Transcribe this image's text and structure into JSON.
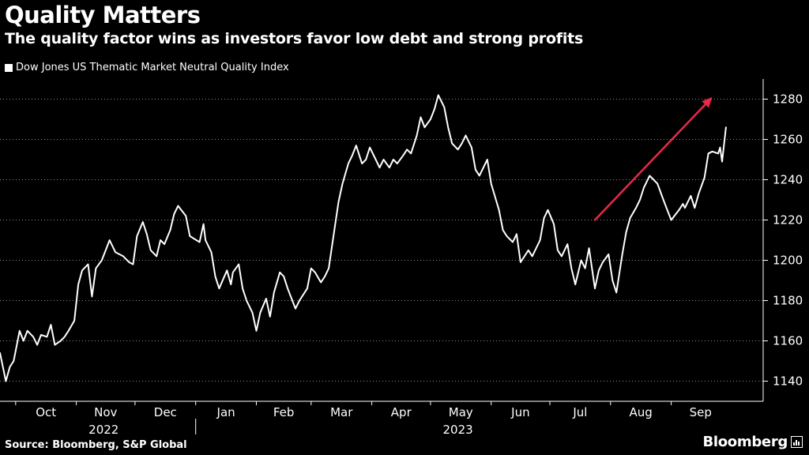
{
  "chart_data": {
    "type": "line",
    "title": "Quality Matters",
    "subtitle": "The quality factor wins as investors favor low debt and strong profits",
    "series": [
      {
        "name": "Dow Jones US Thematic Market Neutral Quality Index",
        "color": "#ffffff",
        "points": [
          [
            "2022-09-23",
            1154
          ],
          [
            "2022-09-26",
            1140
          ],
          [
            "2022-09-28",
            1147
          ],
          [
            "2022-09-30",
            1150
          ],
          [
            "2022-10-03",
            1165
          ],
          [
            "2022-10-05",
            1160
          ],
          [
            "2022-10-07",
            1165
          ],
          [
            "2022-10-10",
            1162
          ],
          [
            "2022-10-12",
            1158
          ],
          [
            "2022-10-14",
            1163
          ],
          [
            "2022-10-17",
            1162
          ],
          [
            "2022-10-19",
            1168
          ],
          [
            "2022-10-21",
            1158
          ],
          [
            "2022-10-24",
            1160
          ],
          [
            "2022-10-26",
            1162
          ],
          [
            "2022-10-28",
            1165
          ],
          [
            "2022-10-31",
            1170
          ],
          [
            "2022-11-02",
            1188
          ],
          [
            "2022-11-04",
            1195
          ],
          [
            "2022-11-07",
            1198
          ],
          [
            "2022-11-09",
            1182
          ],
          [
            "2022-11-11",
            1196
          ],
          [
            "2022-11-14",
            1200
          ],
          [
            "2022-11-16",
            1205
          ],
          [
            "2022-11-18",
            1210
          ],
          [
            "2022-11-21",
            1204
          ],
          [
            "2022-11-23",
            1203
          ],
          [
            "2022-11-25",
            1202
          ],
          [
            "2022-11-28",
            1199
          ],
          [
            "2022-11-30",
            1198
          ],
          [
            "2022-12-02",
            1212
          ],
          [
            "2022-12-05",
            1219
          ],
          [
            "2022-12-07",
            1213
          ],
          [
            "2022-12-09",
            1205
          ],
          [
            "2022-12-12",
            1202
          ],
          [
            "2022-12-14",
            1210
          ],
          [
            "2022-12-16",
            1208
          ],
          [
            "2022-12-19",
            1215
          ],
          [
            "2022-12-21",
            1223
          ],
          [
            "2022-12-23",
            1227
          ],
          [
            "2022-12-27",
            1222
          ],
          [
            "2022-12-29",
            1212
          ],
          [
            "2023-01-03",
            1209
          ],
          [
            "2023-01-05",
            1218
          ],
          [
            "2023-01-06",
            1210
          ],
          [
            "2023-01-09",
            1204
          ],
          [
            "2023-01-11",
            1192
          ],
          [
            "2023-01-13",
            1186
          ],
          [
            "2023-01-17",
            1195
          ],
          [
            "2023-01-19",
            1188
          ],
          [
            "2023-01-20",
            1194
          ],
          [
            "2023-01-23",
            1198
          ],
          [
            "2023-01-25",
            1186
          ],
          [
            "2023-01-27",
            1180
          ],
          [
            "2023-01-30",
            1174
          ],
          [
            "2023-02-01",
            1165
          ],
          [
            "2023-02-03",
            1174
          ],
          [
            "2023-02-06",
            1181
          ],
          [
            "2023-02-08",
            1172
          ],
          [
            "2023-02-10",
            1184
          ],
          [
            "2023-02-13",
            1194
          ],
          [
            "2023-02-15",
            1192
          ],
          [
            "2023-02-17",
            1186
          ],
          [
            "2023-02-21",
            1176
          ],
          [
            "2023-02-23",
            1180
          ],
          [
            "2023-02-27",
            1186
          ],
          [
            "2023-03-01",
            1196
          ],
          [
            "2023-03-03",
            1194
          ],
          [
            "2023-03-06",
            1189
          ],
          [
            "2023-03-08",
            1192
          ],
          [
            "2023-03-10",
            1196
          ],
          [
            "2023-03-13",
            1216
          ],
          [
            "2023-03-15",
            1229
          ],
          [
            "2023-03-17",
            1238
          ],
          [
            "2023-03-20",
            1248
          ],
          [
            "2023-03-22",
            1252
          ],
          [
            "2023-03-24",
            1257
          ],
          [
            "2023-03-27",
            1248
          ],
          [
            "2023-03-29",
            1250
          ],
          [
            "2023-03-31",
            1256
          ],
          [
            "2023-04-03",
            1250
          ],
          [
            "2023-04-05",
            1246
          ],
          [
            "2023-04-07",
            1250
          ],
          [
            "2023-04-10",
            1246
          ],
          [
            "2023-04-12",
            1250
          ],
          [
            "2023-04-14",
            1248
          ],
          [
            "2023-04-17",
            1252
          ],
          [
            "2023-04-19",
            1255
          ],
          [
            "2023-04-21",
            1253
          ],
          [
            "2023-04-24",
            1262
          ],
          [
            "2023-04-26",
            1271
          ],
          [
            "2023-04-28",
            1266
          ],
          [
            "2023-05-01",
            1270
          ],
          [
            "2023-05-03",
            1275
          ],
          [
            "2023-05-05",
            1282
          ],
          [
            "2023-05-08",
            1276
          ],
          [
            "2023-05-10",
            1266
          ],
          [
            "2023-05-12",
            1258
          ],
          [
            "2023-05-15",
            1255
          ],
          [
            "2023-05-17",
            1258
          ],
          [
            "2023-05-19",
            1262
          ],
          [
            "2023-05-22",
            1256
          ],
          [
            "2023-05-24",
            1245
          ],
          [
            "2023-05-26",
            1242
          ],
          [
            "2023-05-30",
            1250
          ],
          [
            "2023-06-01",
            1238
          ],
          [
            "2023-06-05",
            1225
          ],
          [
            "2023-06-07",
            1215
          ],
          [
            "2023-06-09",
            1212
          ],
          [
            "2023-06-12",
            1209
          ],
          [
            "2023-06-14",
            1213
          ],
          [
            "2023-06-16",
            1199
          ],
          [
            "2023-06-20",
            1205
          ],
          [
            "2023-06-22",
            1202
          ],
          [
            "2023-06-26",
            1210
          ],
          [
            "2023-06-28",
            1221
          ],
          [
            "2023-06-30",
            1225
          ],
          [
            "2023-07-03",
            1218
          ],
          [
            "2023-07-05",
            1205
          ],
          [
            "2023-07-07",
            1202
          ],
          [
            "2023-07-10",
            1208
          ],
          [
            "2023-07-12",
            1196
          ],
          [
            "2023-07-14",
            1188
          ],
          [
            "2023-07-17",
            1200
          ],
          [
            "2023-07-19",
            1196
          ],
          [
            "2023-07-21",
            1206
          ],
          [
            "2023-07-24",
            1186
          ],
          [
            "2023-07-26",
            1195
          ],
          [
            "2023-07-28",
            1199
          ],
          [
            "2023-07-31",
            1203
          ],
          [
            "2023-08-02",
            1190
          ],
          [
            "2023-08-04",
            1184
          ],
          [
            "2023-08-07",
            1203
          ],
          [
            "2023-08-09",
            1214
          ],
          [
            "2023-08-11",
            1221
          ],
          [
            "2023-08-14",
            1226
          ],
          [
            "2023-08-16",
            1230
          ],
          [
            "2023-08-18",
            1236
          ],
          [
            "2023-08-21",
            1242
          ],
          [
            "2023-08-23",
            1240
          ],
          [
            "2023-08-25",
            1238
          ],
          [
            "2023-08-28",
            1230
          ],
          [
            "2023-08-30",
            1225
          ],
          [
            "2023-09-01",
            1220
          ],
          [
            "2023-09-05",
            1225
          ],
          [
            "2023-09-07",
            1228
          ],
          [
            "2023-09-08",
            1226
          ],
          [
            "2023-09-11",
            1232
          ],
          [
            "2023-09-13",
            1226
          ],
          [
            "2023-09-15",
            1233
          ],
          [
            "2023-09-18",
            1241
          ],
          [
            "2023-09-20",
            1253
          ],
          [
            "2023-09-22",
            1254
          ],
          [
            "2023-09-25",
            1253
          ],
          [
            "2023-09-26",
            1256
          ],
          [
            "2023-09-27",
            1249
          ],
          [
            "2023-09-29",
            1266
          ]
        ]
      }
    ],
    "x_ticks": [
      {
        "date": "2022-10-01",
        "label": "Oct"
      },
      {
        "date": "2022-11-01",
        "label": "Nov"
      },
      {
        "date": "2022-12-01",
        "label": "Dec"
      },
      {
        "date": "2023-01-01",
        "label": "Jan"
      },
      {
        "date": "2023-02-01",
        "label": "Feb"
      },
      {
        "date": "2023-03-01",
        "label": "Mar"
      },
      {
        "date": "2023-04-01",
        "label": "Apr"
      },
      {
        "date": "2023-05-01",
        "label": "May"
      },
      {
        "date": "2023-06-01",
        "label": "Jun"
      },
      {
        "date": "2023-07-01",
        "label": "Jul"
      },
      {
        "date": "2023-08-01",
        "label": "Aug"
      },
      {
        "date": "2023-09-01",
        "label": "Sep"
      }
    ],
    "x_year_labels": [
      {
        "date": "2022-11-15",
        "label": "2022"
      },
      {
        "date": "2023-05-15",
        "label": "2023"
      }
    ],
    "x_range": [
      "2022-09-23",
      "2023-10-18"
    ],
    "y_ticks": [
      1140,
      1160,
      1180,
      1200,
      1220,
      1240,
      1260,
      1280
    ],
    "ylim": [
      1130,
      1290
    ],
    "y_axis_position": "right",
    "grid": "horizontal-dotted",
    "legend_position": "top-left",
    "annotations": [
      {
        "type": "arrow",
        "color": "#e8294a",
        "from": [
          "2023-07-24",
          1220
        ],
        "to": [
          "2023-09-22",
          1281
        ]
      }
    ]
  },
  "footer": {
    "source": "Source: Bloomberg, S&P Global",
    "brand": "Bloomberg"
  }
}
